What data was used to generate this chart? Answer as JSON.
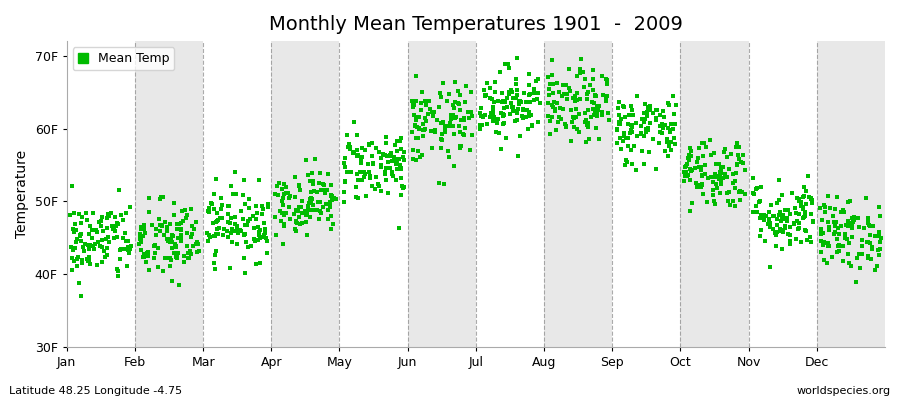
{
  "title": "Monthly Mean Temperatures 1901  -  2009",
  "ylabel": "Temperature",
  "xlabel_labels": [
    "Jan",
    "Feb",
    "Mar",
    "Apr",
    "May",
    "Jun",
    "Jul",
    "Aug",
    "Sep",
    "Oct",
    "Nov",
    "Dec"
  ],
  "ytick_labels": [
    "30F",
    "40F",
    "50F",
    "60F",
    "70F"
  ],
  "ytick_values": [
    30,
    40,
    50,
    60,
    70
  ],
  "ylim": [
    30,
    72
  ],
  "xlim": [
    0,
    12
  ],
  "legend_label": "Mean Temp",
  "dot_color": "#00bb00",
  "dot_size": 6,
  "bg_color": "#ffffff",
  "plot_bg_color": "#ffffff",
  "alt_band_color": "#e8e8e8",
  "grid_color": "#888888",
  "footer_left": "Latitude 48.25 Longitude -4.75",
  "footer_right": "worldspecies.org",
  "title_fontsize": 14,
  "axis_fontsize": 9,
  "footer_fontsize": 8,
  "monthly_means": [
    44.5,
    44.5,
    47.0,
    50.0,
    55.0,
    60.5,
    63.5,
    63.0,
    60.0,
    54.0,
    48.0,
    45.5
  ],
  "monthly_stds": [
    2.8,
    2.8,
    2.5,
    2.2,
    2.5,
    2.8,
    2.5,
    2.5,
    2.5,
    2.5,
    2.5,
    2.5
  ],
  "n_years": 109,
  "seed": 42
}
